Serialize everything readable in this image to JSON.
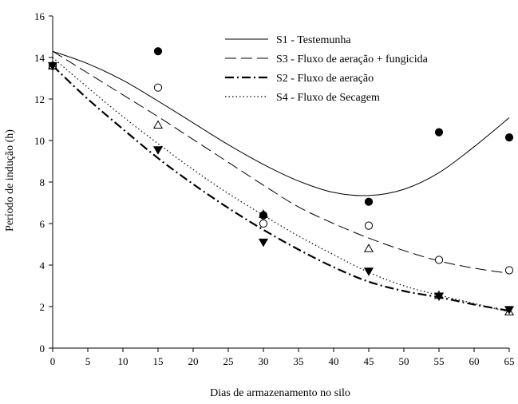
{
  "chart_data": {
    "type": "scatter",
    "xlabel": "Dias de armazenamento no silo",
    "ylabel": "Período de indução (h)",
    "xlim": [
      0,
      65
    ],
    "ylim": [
      0,
      16
    ],
    "xticks": [
      0,
      5,
      10,
      15,
      20,
      25,
      30,
      35,
      40,
      45,
      50,
      55,
      60,
      65
    ],
    "yticks": [
      0,
      2,
      4,
      6,
      8,
      10,
      12,
      14,
      16
    ],
    "grid": false,
    "legend_position": "top-right",
    "series": [
      {
        "name": "S1 - Testemunha",
        "marker": "filled-circle",
        "line_style": "solid",
        "x": [
          0,
          15,
          30,
          45,
          55,
          65
        ],
        "y": [
          13.6,
          14.3,
          6.4,
          7.05,
          10.4,
          10.15
        ],
        "fit": {
          "x": [
            0,
            5,
            10,
            15,
            20,
            25,
            30,
            35,
            40,
            45,
            50,
            55,
            60,
            65
          ],
          "y": [
            14.3,
            13.7,
            12.9,
            11.9,
            10.85,
            9.8,
            8.85,
            8.05,
            7.5,
            7.35,
            7.65,
            8.45,
            9.7,
            11.1
          ]
        }
      },
      {
        "name": "S3 - Fluxo de aeração + fungicida",
        "marker": "open-circle",
        "line_style": "long-dash",
        "x": [
          0,
          15,
          30,
          45,
          55,
          65
        ],
        "y": [
          13.6,
          12.55,
          6.0,
          5.9,
          4.25,
          3.75
        ],
        "fit": {
          "x": [
            0,
            5,
            10,
            15,
            20,
            25,
            30,
            35,
            40,
            45,
            50,
            55,
            60,
            65
          ],
          "y": [
            14.3,
            13.25,
            12.2,
            11.15,
            10.05,
            8.95,
            7.85,
            6.8,
            6.0,
            5.3,
            4.7,
            4.2,
            3.85,
            3.6
          ]
        }
      },
      {
        "name": "S2 - Fluxo de aeração",
        "marker": "filled-triangle-down",
        "line_style": "dash-dot",
        "x": [
          0,
          15,
          30,
          45,
          55,
          65
        ],
        "y": [
          13.6,
          9.55,
          5.1,
          3.7,
          2.5,
          1.85
        ],
        "fit": {
          "x": [
            0,
            5,
            10,
            15,
            20,
            25,
            30,
            35,
            40,
            45,
            50,
            55,
            60,
            65
          ],
          "y": [
            13.6,
            12.0,
            10.55,
            9.15,
            7.9,
            6.75,
            5.7,
            4.75,
            3.9,
            3.2,
            2.75,
            2.45,
            2.1,
            1.8
          ]
        }
      },
      {
        "name": "S4 - Fluxo de Secagem",
        "marker": "open-triangle-up",
        "line_style": "dotted",
        "x": [
          0,
          15,
          30,
          45,
          55,
          65
        ],
        "y": [
          13.6,
          10.75,
          6.45,
          4.8,
          2.55,
          1.75
        ],
        "fit": {
          "x": [
            0,
            5,
            10,
            15,
            20,
            25,
            30,
            35,
            40,
            45,
            50,
            55,
            60,
            65
          ],
          "y": [
            14.0,
            12.55,
            11.15,
            9.85,
            8.6,
            7.45,
            6.4,
            5.4,
            4.5,
            3.65,
            3.0,
            2.55,
            2.15,
            1.75
          ]
        }
      }
    ]
  }
}
